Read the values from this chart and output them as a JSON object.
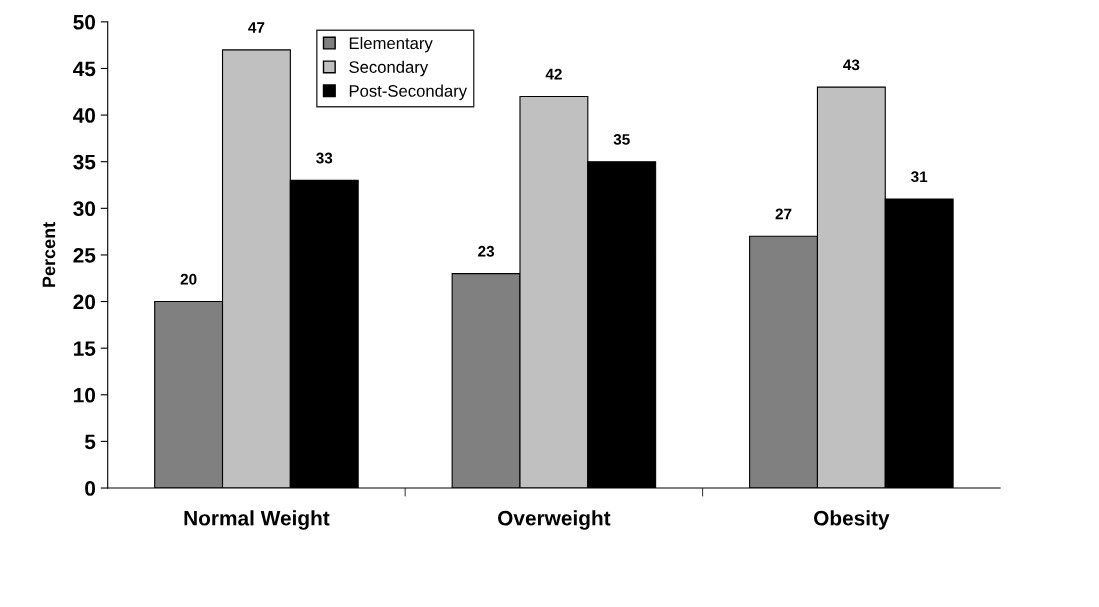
{
  "chart_data": {
    "type": "bar",
    "ylabel": "Percent",
    "categories": [
      "Normal Weight",
      "Overweight",
      "Obesity"
    ],
    "series": [
      {
        "name": "Elementary",
        "color": "#808080",
        "values": [
          20,
          23,
          27
        ]
      },
      {
        "name": "Secondary",
        "color": "#c0c0c0",
        "values": [
          47,
          42,
          43
        ]
      },
      {
        "name": "Post-Secondary",
        "color": "#000000",
        "values": [
          33,
          35,
          31
        ]
      }
    ],
    "ylim": [
      0,
      50
    ],
    "yticks": [
      0,
      5,
      10,
      15,
      20,
      25,
      30,
      35,
      40,
      45,
      50
    ],
    "data_labels": true,
    "legend": "top",
    "grid": false
  }
}
